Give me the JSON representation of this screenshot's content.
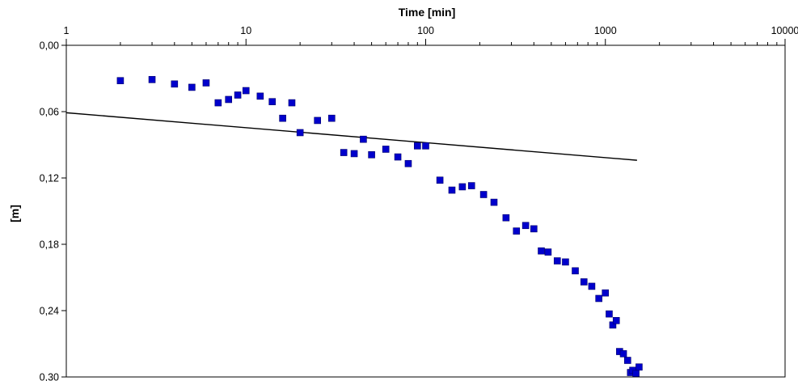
{
  "chart_data": {
    "type": "scatter",
    "xlabel": "Time [min]",
    "ylabel": "[m]",
    "x_scale": "log",
    "y_inverted": true,
    "xlim": [
      1,
      10000
    ],
    "ylim": [
      0,
      0.3
    ],
    "x_ticks": [
      {
        "value": 1,
        "label": "1"
      },
      {
        "value": 10,
        "label": "10"
      },
      {
        "value": 100,
        "label": "100"
      },
      {
        "value": 1000,
        "label": "1000"
      },
      {
        "value": 10000,
        "label": "10000"
      }
    ],
    "y_ticks": [
      {
        "value": 0.0,
        "label": "0,00"
      },
      {
        "value": 0.06,
        "label": "0,06"
      },
      {
        "value": 0.12,
        "label": "0,12"
      },
      {
        "value": 0.18,
        "label": "0,18"
      },
      {
        "value": 0.24,
        "label": "0,24"
      },
      {
        "value": 0.3,
        "label": "0,30"
      }
    ],
    "grid": false,
    "marker_color": "#0000cc",
    "line_color": "#000000",
    "series": [
      {
        "kind": "points",
        "points": [
          [
            2,
            0.032
          ],
          [
            3,
            0.031
          ],
          [
            4,
            0.035
          ],
          [
            5,
            0.038
          ],
          [
            6,
            0.034
          ],
          [
            7,
            0.052
          ],
          [
            8,
            0.049
          ],
          [
            9,
            0.045
          ],
          [
            10,
            0.041
          ],
          [
            12,
            0.046
          ],
          [
            14,
            0.051
          ],
          [
            16,
            0.066
          ],
          [
            18,
            0.052
          ],
          [
            20,
            0.079
          ],
          [
            25,
            0.068
          ],
          [
            30,
            0.066
          ],
          [
            35,
            0.097
          ],
          [
            40,
            0.098
          ],
          [
            45,
            0.085
          ],
          [
            50,
            0.099
          ],
          [
            60,
            0.094
          ],
          [
            70,
            0.101
          ],
          [
            80,
            0.107
          ],
          [
            90,
            0.091
          ],
          [
            100,
            0.091
          ],
          [
            120,
            0.122
          ],
          [
            140,
            0.131
          ],
          [
            160,
            0.128
          ],
          [
            180,
            0.127
          ],
          [
            210,
            0.135
          ],
          [
            240,
            0.142
          ],
          [
            280,
            0.156
          ],
          [
            320,
            0.168
          ],
          [
            360,
            0.163
          ],
          [
            400,
            0.166
          ],
          [
            440,
            0.186
          ],
          [
            480,
            0.187
          ],
          [
            540,
            0.195
          ],
          [
            600,
            0.196
          ],
          [
            680,
            0.204
          ],
          [
            760,
            0.214
          ],
          [
            840,
            0.218
          ],
          [
            920,
            0.229
          ],
          [
            1000,
            0.224
          ],
          [
            1050,
            0.243
          ],
          [
            1100,
            0.253
          ],
          [
            1150,
            0.249
          ],
          [
            1200,
            0.277
          ],
          [
            1260,
            0.279
          ],
          [
            1330,
            0.285
          ],
          [
            1380,
            0.296
          ],
          [
            1420,
            0.294
          ],
          [
            1480,
            0.297
          ],
          [
            1540,
            0.291
          ]
        ]
      },
      {
        "kind": "line",
        "points": [
          [
            1,
            0.061
          ],
          [
            1500,
            0.104
          ]
        ]
      }
    ]
  }
}
